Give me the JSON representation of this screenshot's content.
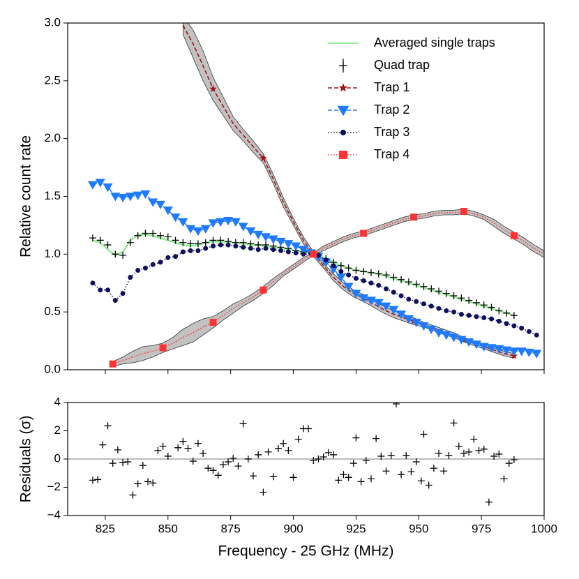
{
  "chart_data": [
    {
      "type": "line",
      "ylabel": "Relative count rate",
      "xlim": [
        810,
        1000
      ],
      "xticks": [
        825,
        850,
        875,
        900,
        925,
        950,
        975,
        1000
      ],
      "ylim": [
        0,
        3
      ],
      "yticks": [
        {
          "value": 0,
          "label": "0.0"
        },
        0.5,
        {
          "value": 1,
          "label": "1.0"
        },
        1.5,
        {
          "value": 2,
          "label": "2.0"
        },
        2.5,
        {
          "value": 3,
          "label": "3.0"
        }
      ],
      "legend": "upper right",
      "series": [
        {
          "name": "Averaged single traps",
          "color": "#90ee90",
          "linestyle": "solid",
          "marker": "none",
          "x": [
            820,
            823,
            826,
            829,
            832,
            835,
            838,
            841,
            844,
            847,
            850,
            853,
            856,
            859,
            862,
            865,
            868,
            871,
            874,
            877,
            880,
            883,
            886,
            889,
            892,
            895,
            898,
            901,
            904,
            907,
            910,
            913,
            916,
            919,
            922,
            925,
            928,
            931,
            934,
            937,
            940,
            943,
            946,
            949,
            952,
            955,
            958,
            961,
            964,
            967,
            970,
            973,
            976,
            979,
            982,
            985,
            988
          ],
          "values": [
            1.12,
            1.1,
            1.04,
            0.99,
            1.02,
            1.12,
            1.17,
            1.17,
            1.16,
            1.14,
            1.12,
            1.1,
            1.08,
            1.07,
            1.08,
            1.1,
            1.11,
            1.11,
            1.1,
            1.1,
            1.09,
            1.08,
            1.08,
            1.07,
            1.06,
            1.05,
            1.04,
            1.03,
            1.02,
            1.01,
            0.99,
            0.96,
            0.93,
            0.9,
            0.88,
            0.86,
            0.85,
            0.84,
            0.83,
            0.81,
            0.79,
            0.77,
            0.75,
            0.73,
            0.71,
            0.69,
            0.67,
            0.65,
            0.63,
            0.61,
            0.59,
            0.57,
            0.55,
            0.53,
            0.51,
            0.49,
            0.47
          ]
        },
        {
          "name": "Quad trap",
          "color": "#000000",
          "linestyle": "none",
          "marker": "plus",
          "x": [
            820,
            823,
            826,
            829,
            832,
            835,
            838,
            841,
            844,
            847,
            850,
            853,
            856,
            859,
            862,
            865,
            868,
            871,
            874,
            877,
            880,
            883,
            886,
            889,
            892,
            895,
            898,
            901,
            904,
            907,
            910,
            913,
            916,
            919,
            922,
            925,
            928,
            931,
            934,
            937,
            940,
            943,
            946,
            949,
            952,
            955,
            958,
            961,
            964,
            967,
            970,
            973,
            976,
            979,
            982,
            985,
            988
          ],
          "values": [
            1.14,
            1.12,
            1.08,
            1.0,
            0.99,
            1.1,
            1.16,
            1.18,
            1.18,
            1.16,
            1.15,
            1.12,
            1.1,
            1.09,
            1.09,
            1.1,
            1.12,
            1.12,
            1.11,
            1.1,
            1.1,
            1.09,
            1.08,
            1.08,
            1.07,
            1.06,
            1.05,
            1.03,
            1.02,
            1.01,
            0.99,
            0.96,
            0.93,
            0.9,
            0.88,
            0.86,
            0.85,
            0.84,
            0.83,
            0.82,
            0.8,
            0.78,
            0.76,
            0.74,
            0.72,
            0.7,
            0.68,
            0.66,
            0.64,
            0.62,
            0.6,
            0.58,
            0.56,
            0.54,
            0.51,
            0.49,
            0.47
          ]
        },
        {
          "name": "Trap 1",
          "color": "#a01414",
          "linestyle": "dashed",
          "marker": "star",
          "markevery": [
            3,
            5
          ],
          "x": [
            856,
            860,
            864,
            868,
            872,
            876,
            880,
            884,
            888,
            892,
            896,
            900,
            904,
            908,
            912,
            916,
            920,
            924,
            928,
            932,
            936,
            940,
            944,
            948,
            952,
            956,
            960,
            964,
            968,
            972,
            976,
            980,
            984,
            988
          ],
          "values": [
            2.98,
            2.82,
            2.63,
            2.43,
            2.28,
            2.13,
            2.03,
            1.93,
            1.83,
            1.65,
            1.45,
            1.28,
            1.12,
            1.0,
            0.9,
            0.8,
            0.72,
            0.66,
            0.62,
            0.57,
            0.52,
            0.48,
            0.45,
            0.42,
            0.39,
            0.36,
            0.33,
            0.3,
            0.26,
            0.23,
            0.2,
            0.17,
            0.14,
            0.12
          ],
          "errors": [
            0.08,
            0.12,
            0.13,
            0.1,
            0.08,
            0.06,
            0.05,
            0.05,
            0.04,
            0.04,
            0.04,
            0.03,
            0.03,
            0.02,
            0.02,
            0.03,
            0.03,
            0.03,
            0.03,
            0.03,
            0.03,
            0.03,
            0.03,
            0.03,
            0.02,
            0.02,
            0.02,
            0.02,
            0.02,
            0.02,
            0.02,
            0.02,
            0.02,
            0.02
          ]
        },
        {
          "name": "Trap 2",
          "color": "#1e7bff",
          "linestyle": "dashed",
          "marker": "triangle_down",
          "x": [
            820,
            823,
            826,
            829,
            832,
            835,
            838,
            841,
            844,
            847,
            850,
            853,
            856,
            859,
            862,
            865,
            868,
            871,
            874,
            877,
            880,
            883,
            886,
            889,
            892,
            895,
            898,
            901,
            904,
            907,
            910,
            913,
            916,
            919,
            922,
            925,
            928,
            931,
            934,
            937,
            940,
            943,
            946,
            949,
            952,
            955,
            958,
            961,
            964,
            967,
            970,
            973,
            976,
            979,
            982,
            985,
            988,
            991,
            994,
            997
          ],
          "values": [
            1.6,
            1.62,
            1.58,
            1.5,
            1.49,
            1.5,
            1.51,
            1.52,
            1.45,
            1.43,
            1.38,
            1.32,
            1.28,
            1.22,
            1.2,
            1.22,
            1.27,
            1.28,
            1.29,
            1.28,
            1.24,
            1.2,
            1.17,
            1.15,
            1.13,
            1.11,
            1.09,
            1.07,
            1.04,
            1.01,
            0.98,
            0.93,
            0.87,
            0.8,
            0.72,
            0.66,
            0.62,
            0.6,
            0.58,
            0.55,
            0.52,
            0.48,
            0.44,
            0.41,
            0.38,
            0.35,
            0.32,
            0.3,
            0.28,
            0.26,
            0.24,
            0.22,
            0.2,
            0.19,
            0.18,
            0.17,
            0.16,
            0.16,
            0.15,
            0.14
          ]
        },
        {
          "name": "Trap 3",
          "color": "#10105e",
          "linestyle": "dotted",
          "marker": "circle",
          "x": [
            820,
            823,
            826,
            829,
            832,
            835,
            838,
            841,
            844,
            847,
            850,
            853,
            856,
            859,
            862,
            865,
            868,
            871,
            874,
            877,
            880,
            883,
            886,
            889,
            892,
            895,
            898,
            901,
            904,
            907,
            910,
            913,
            916,
            919,
            922,
            925,
            928,
            931,
            934,
            937,
            940,
            943,
            946,
            949,
            952,
            955,
            958,
            961,
            964,
            967,
            970,
            973,
            976,
            979,
            982,
            985,
            988,
            991,
            994,
            997
          ],
          "values": [
            0.75,
            0.69,
            0.69,
            0.6,
            0.66,
            0.8,
            0.86,
            0.88,
            0.91,
            0.93,
            0.97,
            0.98,
            1.02,
            1.03,
            1.03,
            1.05,
            1.07,
            1.08,
            1.08,
            1.07,
            1.06,
            1.05,
            1.04,
            1.05,
            1.04,
            1.03,
            1.02,
            1.01,
            1.0,
            1.0,
            0.99,
            0.95,
            0.9,
            0.85,
            0.82,
            0.79,
            0.77,
            0.75,
            0.73,
            0.7,
            0.67,
            0.64,
            0.61,
            0.59,
            0.57,
            0.55,
            0.53,
            0.51,
            0.5,
            0.48,
            0.47,
            0.46,
            0.45,
            0.44,
            0.42,
            0.4,
            0.38,
            0.36,
            0.33,
            0.3
          ]
        },
        {
          "name": "Trap 4",
          "color": "#ff3333",
          "linestyle": "dotted",
          "marker": "square",
          "markevery": [
            0,
            5
          ],
          "x": [
            828,
            832,
            836,
            840,
            844,
            848,
            852,
            856,
            860,
            864,
            868,
            872,
            876,
            880,
            884,
            888,
            892,
            896,
            900,
            904,
            908,
            912,
            916,
            920,
            924,
            928,
            932,
            936,
            940,
            944,
            948,
            952,
            956,
            960,
            964,
            968,
            972,
            976,
            980,
            984,
            988,
            992,
            996,
            1000
          ],
          "values": [
            0.05,
            0.08,
            0.11,
            0.14,
            0.16,
            0.19,
            0.23,
            0.28,
            0.32,
            0.37,
            0.41,
            0.47,
            0.53,
            0.58,
            0.63,
            0.69,
            0.76,
            0.83,
            0.89,
            0.95,
            1.0,
            1.05,
            1.09,
            1.13,
            1.16,
            1.18,
            1.21,
            1.24,
            1.27,
            1.3,
            1.32,
            1.33,
            1.35,
            1.36,
            1.36,
            1.37,
            1.35,
            1.32,
            1.27,
            1.21,
            1.16,
            1.11,
            1.05,
            1.0
          ],
          "errors": [
            0.02,
            0.03,
            0.05,
            0.06,
            0.05,
            0.04,
            0.05,
            0.07,
            0.08,
            0.07,
            0.05,
            0.04,
            0.04,
            0.03,
            0.03,
            0.03,
            0.03,
            0.02,
            0.02,
            0.02,
            0.01,
            0.02,
            0.02,
            0.02,
            0.02,
            0.02,
            0.02,
            0.02,
            0.02,
            0.02,
            0.02,
            0.02,
            0.02,
            0.02,
            0.02,
            0.02,
            0.02,
            0.02,
            0.03,
            0.03,
            0.03,
            0.03,
            0.03,
            0.03
          ]
        }
      ]
    },
    {
      "type": "scatter",
      "xlabel": "Frequency - 25 GHz (MHz)",
      "ylabel": "Residuals (σ)",
      "xlim": [
        810,
        1000
      ],
      "xticks": [
        825,
        850,
        875,
        900,
        925,
        950,
        975,
        1000
      ],
      "ylim": [
        -4,
        4
      ],
      "yticks": [
        {
          "value": -4,
          "label": "−4"
        },
        {
          "value": -2,
          "label": "−2"
        },
        0,
        2,
        4
      ],
      "hline": 0,
      "color": "#000000",
      "marker": "plus",
      "x": [
        820,
        822,
        824,
        826,
        828,
        830,
        832,
        834,
        836,
        838,
        840,
        842,
        844,
        846,
        848,
        850,
        854,
        856,
        858,
        860,
        862,
        864,
        866,
        868,
        870,
        872,
        874,
        876,
        878,
        880,
        882,
        884,
        886,
        888,
        890,
        892,
        894,
        896,
        898,
        900,
        902,
        904,
        906,
        908,
        910,
        912,
        914,
        916,
        918,
        920,
        922,
        924,
        925,
        927,
        929,
        931,
        933,
        935,
        937,
        939,
        941,
        943,
        945,
        947,
        949,
        951,
        952,
        954,
        956,
        958,
        960,
        962,
        964,
        966,
        968,
        970,
        972,
        974,
        976,
        978,
        980,
        982,
        984,
        986,
        988
      ],
      "values": [
        -1.5,
        -1.45,
        1.0,
        2.35,
        -0.3,
        0.65,
        -0.25,
        -0.2,
        -2.55,
        -1.75,
        -0.45,
        -1.6,
        -1.7,
        0.6,
        0.9,
        0.2,
        0.8,
        1.25,
        0.75,
        -0.15,
        1.1,
        0.4,
        -0.65,
        -0.8,
        -1.15,
        -0.4,
        -0.2,
        0.05,
        -0.5,
        2.5,
        0.0,
        -1.2,
        0.3,
        -2.35,
        0.5,
        -1.25,
        0.75,
        1.1,
        0.6,
        -1.3,
        1.4,
        2.15,
        2.15,
        -0.1,
        0.0,
        0.15,
        0.45,
        0.3,
        -1.5,
        -1.1,
        -1.3,
        -0.3,
        1.5,
        -1.6,
        -0.1,
        -1.4,
        1.45,
        0.2,
        -0.85,
        0.25,
        3.9,
        -1.1,
        0.25,
        -0.9,
        -0.2,
        -1.55,
        1.75,
        -1.85,
        -0.65,
        0.4,
        -0.85,
        0.25,
        2.55,
        0.9,
        0.4,
        0.5,
        1.4,
        0.6,
        0.7,
        -3.05,
        0.2,
        0.35,
        -1.4,
        -0.3,
        -0.05
      ]
    }
  ]
}
